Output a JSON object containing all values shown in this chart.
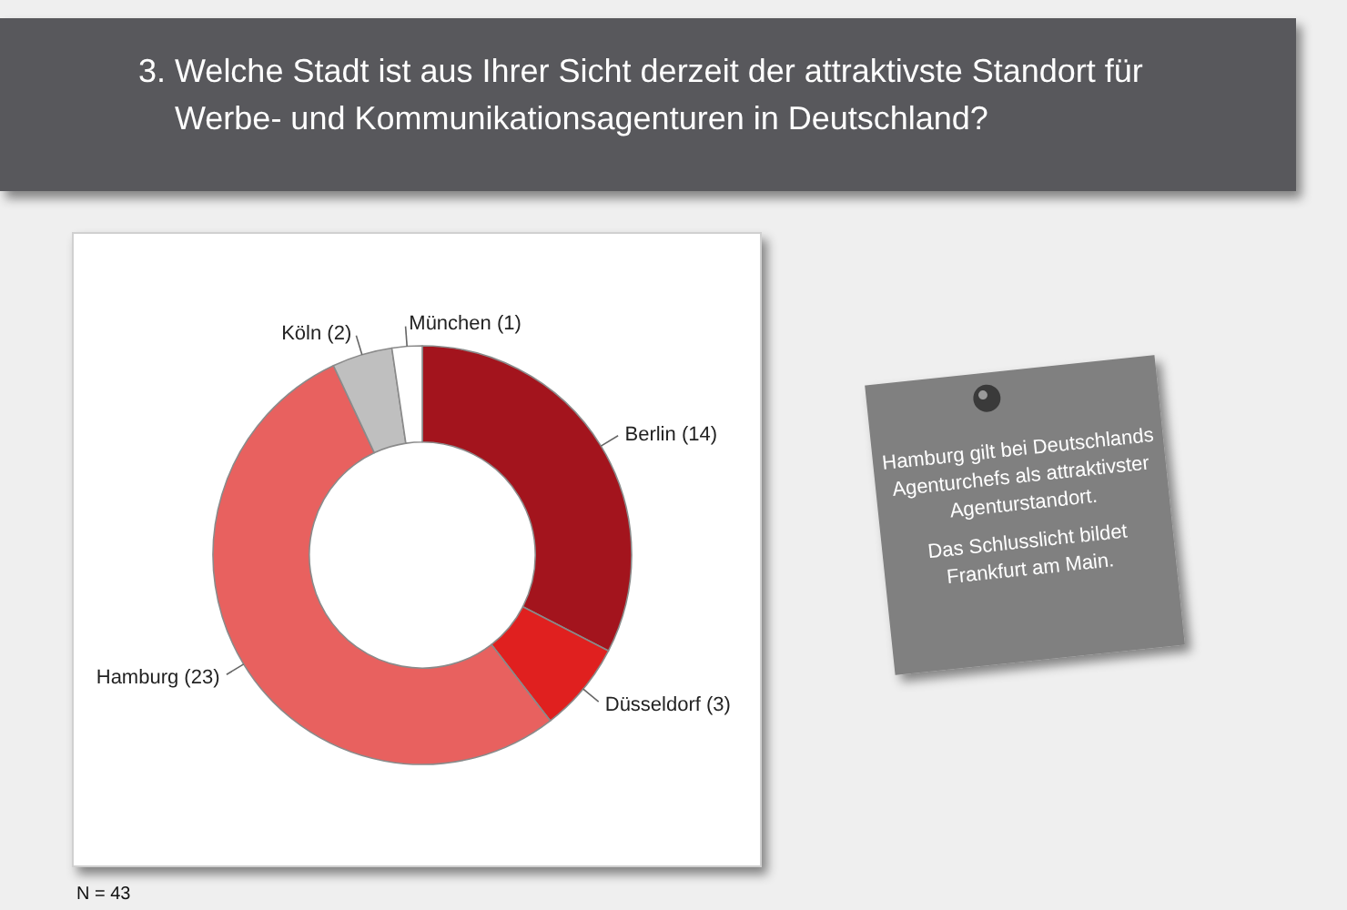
{
  "chart_data": {
    "type": "donut",
    "title": "3. Welche Stadt ist aus Ihrer Sicht derzeit der attraktivste Standort für Werbe- und Kommunikationsagenturen in Deutschland?",
    "categories": [
      "Berlin",
      "Düsseldorf",
      "Hamburg",
      "Köln",
      "München"
    ],
    "values": [
      14,
      3,
      23,
      2,
      1
    ],
    "value_labels": [
      "(14)",
      "(3)",
      "(23)",
      "(2)",
      "(1)"
    ],
    "colors": [
      "#a3141d",
      "#e0201f",
      "#e8615f",
      "#bfbfbf",
      "#ffffff"
    ],
    "annotations": [
      "Hamburg gilt bei Deutschlands Agenturchefs als attraktivster Agenturstandort.",
      "Das Schlusslicht bildet Frankfurt am Main.",
      "N = 43"
    ]
  }
}
